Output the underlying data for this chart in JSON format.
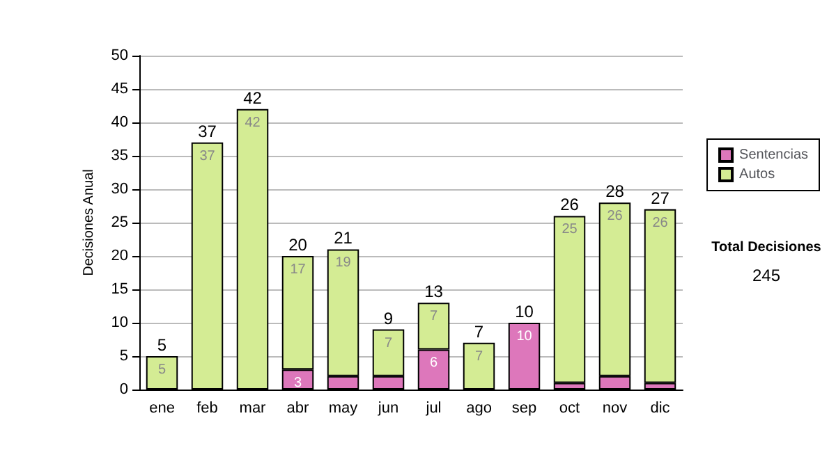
{
  "chart_data": {
    "type": "bar",
    "stacked": true,
    "ylabel": "Decisiones Anual",
    "categories": [
      "ene",
      "feb",
      "mar",
      "abr",
      "may",
      "jun",
      "jul",
      "ago",
      "sep",
      "oct",
      "nov",
      "dic"
    ],
    "series": [
      {
        "name": "Sentencias",
        "color": "#dd77bb",
        "values": [
          0,
          0,
          0,
          3,
          2,
          2,
          6,
          0,
          10,
          1,
          2,
          1
        ],
        "value_labels": [
          null,
          null,
          null,
          "3",
          null,
          null,
          "6",
          null,
          "10",
          null,
          null,
          null
        ]
      },
      {
        "name": "Autos",
        "color": "#d4ec94",
        "values": [
          5,
          37,
          42,
          17,
          19,
          7,
          7,
          7,
          0,
          25,
          26,
          26
        ],
        "value_labels": [
          "5",
          "37",
          "42",
          "17",
          "19",
          "7",
          "7",
          "7",
          null,
          "25",
          "26",
          "26"
        ]
      }
    ],
    "totals": [
      "5",
      "37",
      "42",
      "20",
      "21",
      "9",
      "13",
      "7",
      "10",
      "26",
      "28",
      "27"
    ],
    "ylim": [
      0,
      50
    ],
    "yticks": [
      0,
      5,
      10,
      15,
      20,
      25,
      30,
      35,
      40,
      45,
      50
    ],
    "grid": "y",
    "legend": "right",
    "annotations": [
      "Total Decisiones",
      "245"
    ]
  }
}
